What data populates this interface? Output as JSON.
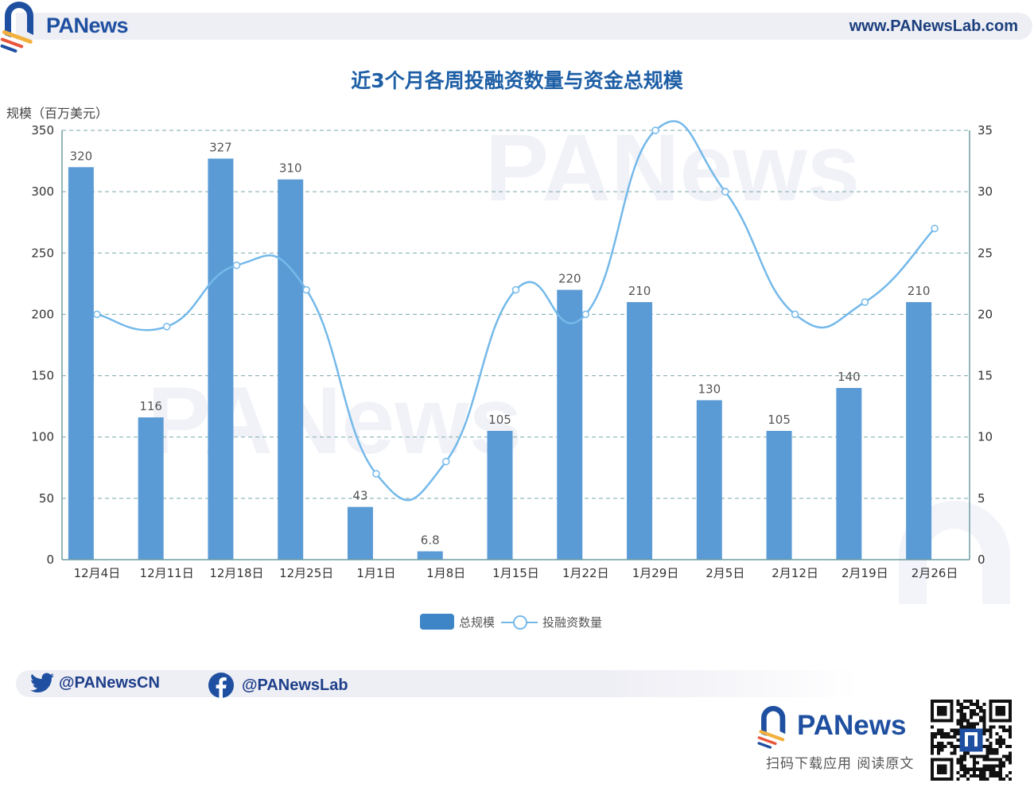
{
  "header": {
    "brand": "PANews",
    "url": "www.PANewsLab.com"
  },
  "chart_data": {
    "type": "bar",
    "title": "近3个月各周投融资数量与资金总规模",
    "xlabel": "",
    "ylabel": "规模（百万美元）",
    "y2label": "",
    "categories": [
      "12月4日",
      "12月11日",
      "12月18日",
      "12月25日",
      "1月1日",
      "1月8日",
      "1月15日",
      "1月22日",
      "1月29日",
      "2月5日",
      "2月12日",
      "2月19日",
      "2月26日"
    ],
    "series": [
      {
        "name": "总规模",
        "type": "bar",
        "axis": "left",
        "color": "#3d85c6",
        "values": [
          320,
          116,
          327,
          310,
          43,
          6.8,
          105,
          220,
          210,
          130,
          105,
          140,
          210
        ],
        "labels": [
          "320",
          "116",
          "327",
          "310",
          "43",
          "6.8",
          "105",
          "220",
          "210",
          "130",
          "105",
          "140",
          "210"
        ]
      },
      {
        "name": "投融资数量",
        "type": "line",
        "axis": "right",
        "smooth": true,
        "color": "#74b9ea",
        "values": [
          20,
          19,
          24,
          22,
          7,
          8,
          22,
          20,
          35,
          30,
          20,
          21,
          27
        ]
      }
    ],
    "ylim": [
      0,
      350
    ],
    "y_ticks": [
      "0",
      "50",
      "100",
      "150",
      "200",
      "250",
      "300",
      "350"
    ],
    "y2lim": [
      0,
      35
    ],
    "y2_ticks": [
      "0",
      "5",
      "10",
      "15",
      "20",
      "25",
      "30",
      "35"
    ],
    "grid": "dashed horizontal",
    "legend_position": "bottom-center"
  },
  "legend": {
    "bar_label": "总规模",
    "line_label": "投融资数量"
  },
  "footer": {
    "twitter": "@PANewsCN",
    "facebook": "@PANewsLab",
    "brand": "PANews",
    "caption": "扫码下载应用  阅读原文"
  }
}
